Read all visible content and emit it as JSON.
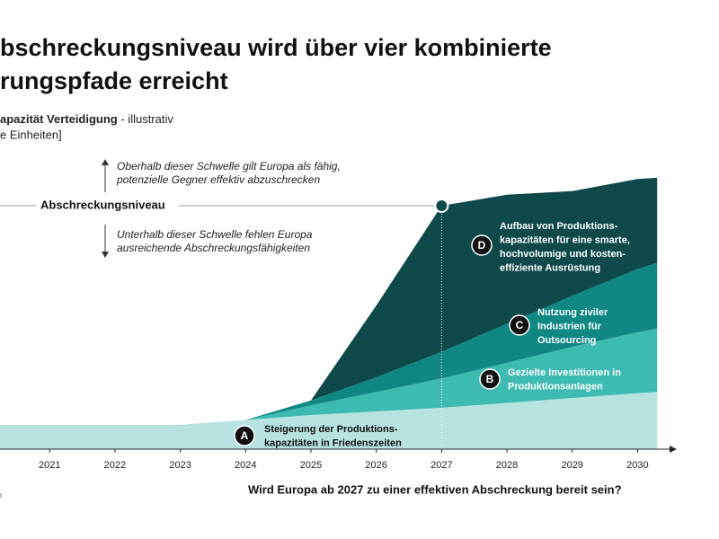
{
  "chart_data": {
    "type": "stacked-area",
    "title_lines": [
      "bschreckungsniveau wird über vier kombinierte",
      "rungspfade erreicht"
    ],
    "subtitle_bold": "apazität Verteidigung",
    "subtitle_rest": " - illustrativ",
    "unit_label": "e Einheiten]",
    "question": "Wird Europa ab 2027 zu einer effektiven Abschreckung bereit sein?",
    "source": "r",
    "x": [
      2020.24,
      2021,
      2022,
      2023,
      2024,
      2025,
      2026,
      2027,
      2028,
      2029,
      2030,
      2030.3
    ],
    "xlim": [
      2020.24,
      2030.6
    ],
    "xticks": [
      2021,
      2022,
      2023,
      2024,
      2025,
      2026,
      2027,
      2028,
      2029,
      2030
    ],
    "ylim": [
      0,
      140
    ],
    "series": [
      {
        "letter": "A",
        "color": "#b6e2df",
        "label_lines": [
          "Steigerung der Produktions-",
          "kapazitäten in Friedenszeiten"
        ],
        "values": [
          10,
          10,
          10,
          10,
          12,
          14,
          15.5,
          17,
          19,
          21,
          23,
          23.5
        ]
      },
      {
        "letter": "B",
        "color": "#3dbbb1",
        "label_lines": [
          "Gezielte Investitionen in",
          "Produktionsanlagen"
        ],
        "values": [
          0,
          0,
          0,
          0,
          0,
          4,
          8,
          12,
          16.5,
          21,
          25,
          26
        ]
      },
      {
        "letter": "C",
        "color": "#0f8884",
        "label_lines": [
          "Nutzung ziviler",
          "Industrien für",
          "Outsourcing"
        ],
        "values": [
          0,
          0,
          0,
          0,
          0,
          2,
          6,
          11,
          16,
          21,
          26,
          27
        ]
      },
      {
        "letter": "D",
        "color": "#0d4a49",
        "label_lines": [
          "Aufbau von Produktions-",
          "kapazitäten für eine smarte,",
          "hochvolumige und kosten-",
          "effiziente Ausrüstung"
        ],
        "values": [
          0,
          0,
          0,
          0,
          0,
          0,
          29.5,
          60,
          53,
          43,
          37,
          35
        ]
      }
    ],
    "threshold": {
      "value": 100,
      "x": 2027,
      "label": "Abschreckungsniveau",
      "above_lines": [
        "Oberhalb dieser Schwelle gilt Europa als fähig,",
        "potenzielle Gegner effektiv abzuschrecken"
      ],
      "below_lines": [
        "Unterhalb dieser Schwelle fehlen Europa",
        "ausreichende Abschreckungsfähigkeiten"
      ]
    }
  }
}
